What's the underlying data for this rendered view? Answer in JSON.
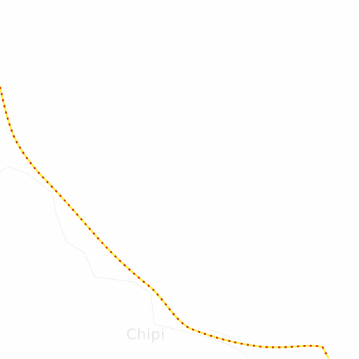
{
  "map": {
    "place_label": "Chipi",
    "colors": {
      "background": "#fefefe",
      "route_dash": "#d42a00",
      "route_base": "#ffee33",
      "boundary": "#eeeeee",
      "label": "#e6e6e6"
    }
  }
}
